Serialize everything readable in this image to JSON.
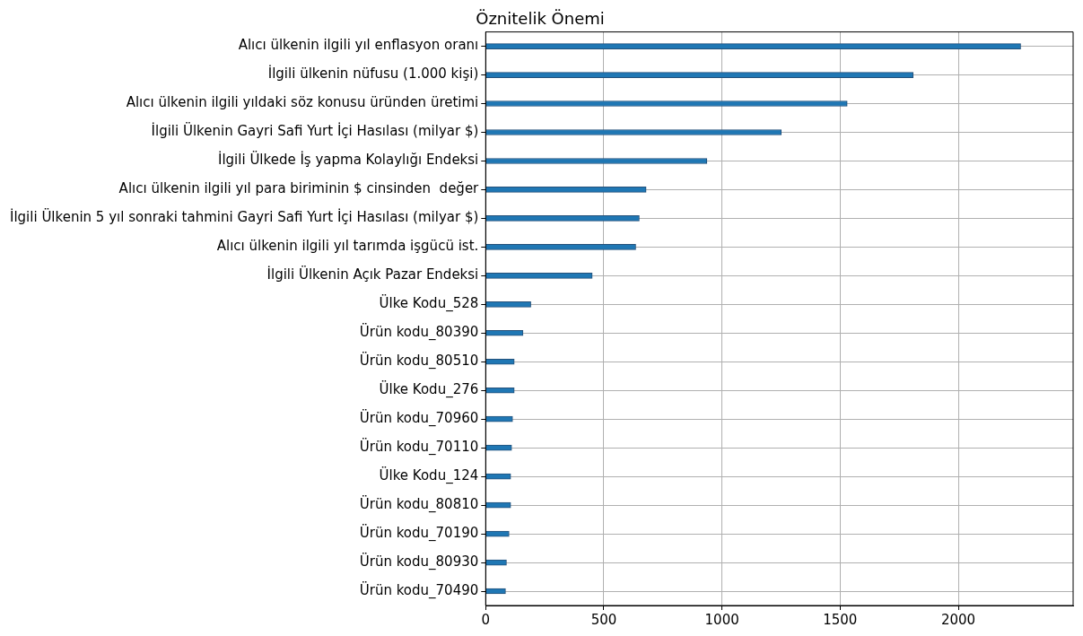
{
  "chart_data": {
    "type": "bar",
    "orientation": "horizontal",
    "title": "Öznitelik Önemi",
    "categories": [
      "Alıcı ülkenin ilgili yıl enflasyon oranı",
      "İlgili ülkenin nüfusu (1.000 kişi)",
      "Alıcı ülkenin ilgili yıldaki söz konusu üründen üretimi",
      "İlgili Ülkenin Gayri Safi Yurt İçi Hasılası (milyar $)",
      "İlgili Ülkede İş yapma Kolaylığı Endeksi",
      "Alıcı ülkenin ilgili yıl para biriminin $ cinsinden  değer",
      "İlgili Ülkenin 5 yıl sonraki tahmini Gayri Safi Yurt İçi Hasılası (milyar $)",
      "Alıcı ülkenin ilgili yıl tarımda işgücü ist.",
      "İlgili Ülkenin Açık Pazar Endeksi",
      "Ülke Kodu_528",
      "Ürün kodu_80390",
      "Ürün kodu_80510",
      "Ülke Kodu_276",
      "Ürün kodu_70960",
      "Ürün kodu_70110",
      "Ülke Kodu_124",
      "Ürün kodu_80810",
      "Ürün kodu_70190",
      "Ürün kodu_80930",
      "Ürün kodu_70490"
    ],
    "values": [
      2264,
      1809,
      1530,
      1251,
      936,
      679,
      650,
      635,
      451,
      191,
      158,
      121,
      121,
      114,
      110,
      106,
      106,
      99,
      88,
      84
    ],
    "color": "#1f77b4",
    "xlim": [
      0,
      2486
    ],
    "xticks": [
      0,
      500,
      1000,
      1500,
      2000
    ],
    "grid": true
  }
}
